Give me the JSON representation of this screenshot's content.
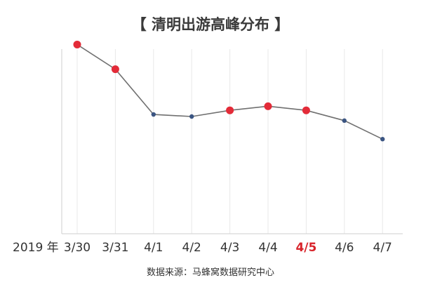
{
  "chart_data": {
    "type": "line",
    "title": "【 清明出游高峰分布 】",
    "x_year_label": "2019 年",
    "categories": [
      "3/30",
      "3/31",
      "4/1",
      "4/2",
      "4/3",
      "4/4",
      "4/5",
      "4/6",
      "4/7"
    ],
    "values": [
      92,
      80,
      58,
      57,
      60,
      62,
      60,
      55,
      46
    ],
    "highlighted_points": [
      "3/30",
      "3/31",
      "4/3",
      "4/4",
      "4/5"
    ],
    "highlighted_tick": "4/5",
    "ylim": [
      0,
      100
    ],
    "grid": "vertical",
    "source": "数据来源：马蜂窝数据研究中心",
    "colors": {
      "line": "#707070",
      "point": "#3b5582",
      "highlight": "#e32b38",
      "highlight_text": "#d8232a",
      "grid": "#e8e8e8",
      "axis": "#cfcfcf"
    }
  }
}
